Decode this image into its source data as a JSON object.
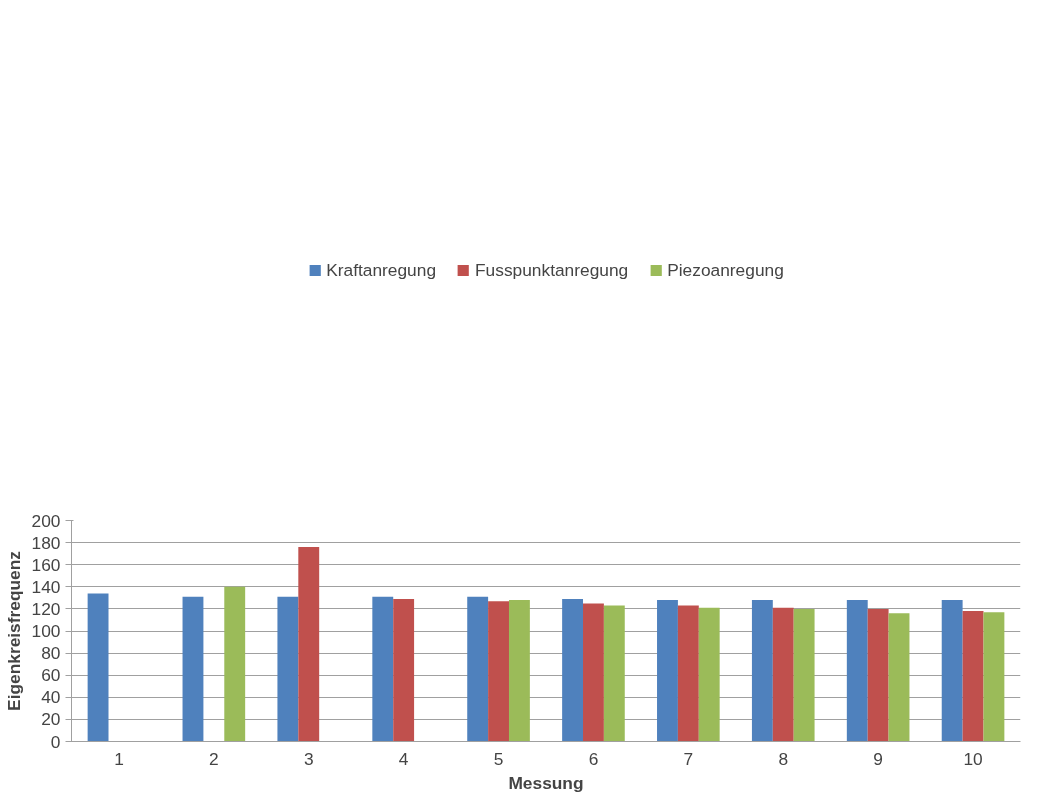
{
  "chart_data": {
    "type": "bar",
    "xlabel": "Messung",
    "ylabel": "Eigenkreisfrequenz",
    "categories": [
      "1",
      "2",
      "3",
      "4",
      "5",
      "6",
      "7",
      "8",
      "9",
      "10"
    ],
    "series": [
      {
        "name": "Kraftanregung",
        "color": "#4f81bd",
        "values": [
          134,
          131,
          131,
          131,
          131,
          129,
          128,
          128,
          128,
          128
        ]
      },
      {
        "name": "Fusspunktanregung",
        "color": "#c0504d",
        "values": [
          null,
          null,
          176,
          129,
          127,
          125,
          123,
          121,
          120,
          118
        ]
      },
      {
        "name": "Piezoanregung",
        "color": "#9bbb59",
        "values": [
          null,
          140,
          null,
          null,
          128,
          123,
          121,
          120,
          116,
          117
        ]
      }
    ],
    "ylim": [
      0,
      200
    ],
    "yticks": [
      0,
      20,
      40,
      60,
      80,
      100,
      120,
      140,
      160,
      180,
      200
    ],
    "grid": "y",
    "legend": "top"
  }
}
